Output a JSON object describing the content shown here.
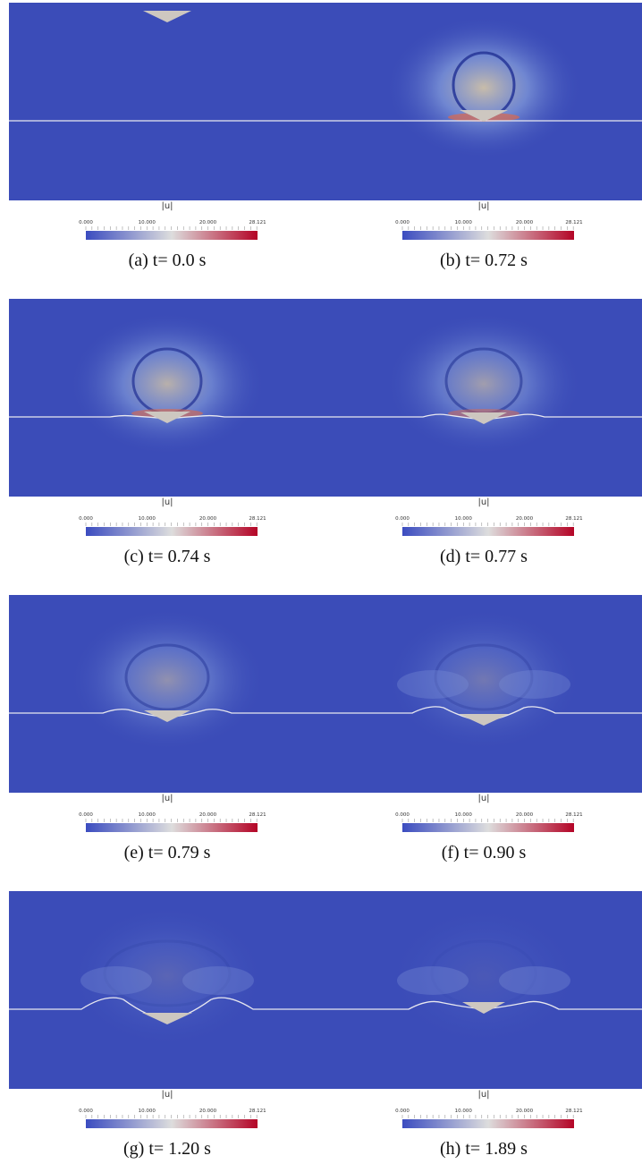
{
  "figure": {
    "colorbar": {
      "title": "|u|",
      "ticks": [
        "0.000",
        "10.000",
        "20.000",
        "28.121"
      ]
    },
    "panels": [
      {
        "caption": "(a) t= 0.0 s"
      },
      {
        "caption": "(b) t= 0.72 s"
      },
      {
        "caption": "(c) t= 0.74 s"
      },
      {
        "caption": "(d) t= 0.77 s"
      },
      {
        "caption": "(e) t= 0.79 s"
      },
      {
        "caption": "(f) t= 0.90 s"
      },
      {
        "caption": "(g) t= 1.20 s"
      },
      {
        "caption": "(h) t= 1.89 s"
      }
    ]
  }
}
